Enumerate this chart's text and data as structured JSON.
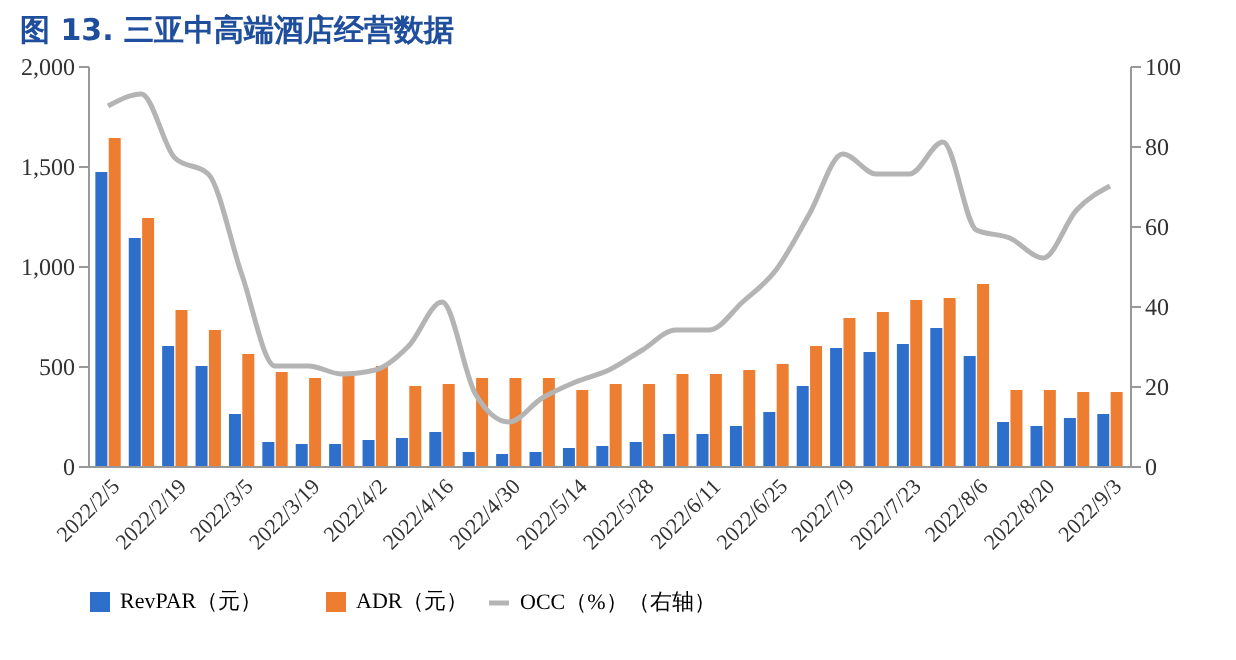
{
  "chart_data": {
    "type": "bar",
    "title": "图 13. 三亚中高端酒店经营数据",
    "categories": [
      "2022/2/5",
      null,
      "2022/2/19",
      null,
      "2022/3/5",
      null,
      "2022/3/19",
      null,
      "2022/4/2",
      null,
      "2022/4/16",
      null,
      "2022/4/30",
      null,
      "2022/5/14",
      null,
      "2022/5/28",
      null,
      "2022/6/11",
      null,
      "2022/6/25",
      null,
      "2022/7/9",
      null,
      "2022/7/23",
      null,
      "2022/8/6",
      null,
      "2022/8/20",
      null,
      "2022/9/3"
    ],
    "series": [
      {
        "name": "RevPAR（元）",
        "color": "#2e6fcc",
        "values": [
          1470,
          1140,
          600,
          500,
          260,
          120,
          110,
          110,
          130,
          140,
          170,
          70,
          60,
          70,
          90,
          100,
          120,
          160,
          160,
          200,
          270,
          400,
          590,
          570,
          610,
          690,
          550,
          220,
          200,
          240,
          260
        ]
      },
      {
        "name": "ADR（元）",
        "color": "#ed7d31",
        "values": [
          1640,
          1240,
          780,
          680,
          560,
          470,
          440,
          460,
          500,
          400,
          410,
          440,
          440,
          440,
          380,
          410,
          410,
          460,
          460,
          480,
          510,
          600,
          740,
          770,
          830,
          840,
          910,
          380,
          380,
          370,
          370
        ]
      },
      {
        "name": "OCC（%）（右轴）",
        "color": "#b4b4b4",
        "type": "line",
        "axis": "y2",
        "values": [
          90,
          93,
          77,
          73,
          48,
          25,
          25,
          23,
          24,
          30,
          41,
          18,
          11,
          17,
          21,
          24,
          29,
          34,
          34,
          41,
          49,
          63,
          78,
          73,
          73,
          81,
          59,
          57,
          52,
          64,
          70
        ]
      }
    ],
    "ylim": [
      0,
      2000
    ],
    "yticks": [
      0,
      {
        "value": 500,
        "label": "500"
      },
      {
        "value": 1000,
        "label": "1,000"
      },
      {
        "value": 1500,
        "label": "1,500"
      },
      {
        "value": 2000,
        "label": "2,000"
      }
    ],
    "y2lim": [
      0,
      100
    ],
    "y2ticks": [
      0,
      20,
      40,
      60,
      80,
      100
    ],
    "legend": "bottom",
    "grid": false,
    "line_style": "solid",
    "marker": "none"
  }
}
